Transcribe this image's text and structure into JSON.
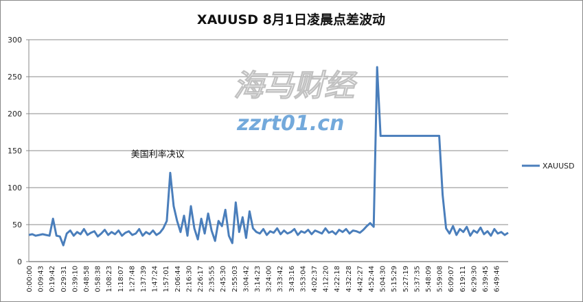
{
  "chart_data": {
    "type": "line",
    "title": "XAUUSD 8月1日凌晨点差波动",
    "xlabel": "",
    "ylabel": "",
    "ylim": [
      0,
      300
    ],
    "yticks": [
      0,
      50,
      100,
      150,
      200,
      250,
      300
    ],
    "grid": true,
    "legend": "right",
    "x_tick_labels": [
      "0:00:00",
      "0:09:43",
      "0:19:42",
      "0:29:31",
      "0:39:10",
      "0:48:58",
      "0:58:38",
      "1:08:23",
      "1:18:07",
      "1:27:48",
      "1:37:39",
      "1:47:24",
      "1:57:01",
      "2:06:44",
      "2:16:30",
      "2:26:17",
      "2:35:55",
      "2:45:30",
      "2:55:03",
      "3:04:42",
      "3:14:23",
      "3:24:00",
      "3:33:42",
      "3:43:16",
      "3:53:04",
      "4:02:37",
      "4:12:20",
      "4:22:18",
      "4:32:28",
      "4:42:27",
      "4:52:44",
      "5:04:30",
      "5:15:29",
      "5:27:19",
      "5:37:35",
      "5:48:09",
      "5:59:08",
      "6:09:07",
      "6:19:11",
      "6:29:30",
      "6:39:45",
      "6:49:46"
    ],
    "series": [
      {
        "name": "XAUUSD",
        "color": "#4a7ebb",
        "values": [
          36,
          37,
          35,
          36,
          37,
          36,
          35,
          58,
          35,
          34,
          22,
          38,
          42,
          35,
          40,
          37,
          44,
          36,
          39,
          41,
          34,
          38,
          43,
          36,
          40,
          37,
          42,
          35,
          39,
          41,
          36,
          38,
          44,
          35,
          40,
          37,
          42,
          36,
          39,
          45,
          55,
          120,
          75,
          55,
          40,
          62,
          35,
          75,
          45,
          30,
          58,
          38,
          65,
          42,
          28,
          55,
          48,
          70,
          35,
          25,
          80,
          40,
          60,
          32,
          68,
          45,
          40,
          38,
          44,
          36,
          41,
          39,
          45,
          37,
          42,
          38,
          40,
          44,
          36,
          41,
          39,
          43,
          37,
          42,
          40,
          38,
          45,
          39,
          41,
          37,
          43,
          40,
          44,
          38,
          42,
          41,
          39,
          43,
          48,
          52,
          47,
          263,
          170,
          170,
          170,
          170,
          170,
          170,
          170,
          170,
          170,
          170,
          170,
          170,
          170,
          170,
          170,
          170,
          170,
          170,
          90,
          45,
          38,
          48,
          36,
          44,
          40,
          47,
          35,
          42,
          39,
          46,
          37,
          41,
          35,
          44,
          38,
          40,
          36,
          39
        ]
      }
    ],
    "annotations": [
      {
        "text": "美国利率决议",
        "x_label": "1:47:24",
        "y": 145
      }
    ]
  },
  "watermark": {
    "text": "海马财经",
    "url": "zzrt01.cn"
  }
}
